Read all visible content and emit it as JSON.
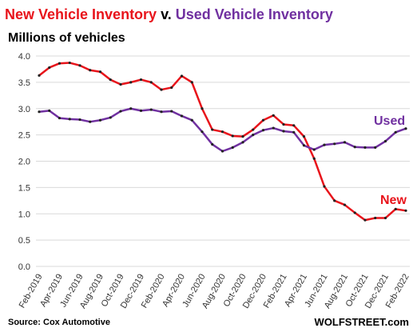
{
  "chart_data": {
    "type": "line",
    "title": [
      "New Vehicle Inventory",
      "v.",
      "Used Vehicle Inventory"
    ],
    "title_colors": [
      "#e8141b",
      "#000000",
      "#7030a0"
    ],
    "subtitle": "Millions of vehicles",
    "source": "Source: Cox Automotive",
    "credit": "WOLFSTREET.com",
    "categories": [
      "Feb-2019",
      null,
      "Apr-2019",
      null,
      "Jun-2019",
      null,
      "Aug-2019",
      null,
      "Oct-2019",
      null,
      "Dec-2019",
      null,
      "Feb-2020",
      null,
      "Apr-2020",
      null,
      "Jun-2020",
      null,
      "Aug-2020",
      null,
      "Oct-2020",
      null,
      "Dec-2020",
      null,
      "Feb-2021",
      null,
      "Apr-2021",
      null,
      "Jun-2021",
      null,
      "Aug-2021",
      null,
      "Oct-2021",
      null,
      "Dec-2021",
      null,
      "Feb-2022"
    ],
    "series": [
      {
        "name": "New",
        "color": "#e8141b",
        "values": [
          3.63,
          3.78,
          3.86,
          3.87,
          3.82,
          3.73,
          3.7,
          3.55,
          3.46,
          3.5,
          3.55,
          3.5,
          3.36,
          3.4,
          3.62,
          3.5,
          3.0,
          2.6,
          2.56,
          2.48,
          2.47,
          2.6,
          2.78,
          2.87,
          2.7,
          2.68,
          2.47,
          2.05,
          1.52,
          1.25,
          1.17,
          1.02,
          0.88,
          0.92,
          0.92,
          1.09,
          1.06
        ]
      },
      {
        "name": "Used",
        "color": "#7030a0",
        "values": [
          2.94,
          2.96,
          2.82,
          2.8,
          2.79,
          2.75,
          2.78,
          2.83,
          2.95,
          3.0,
          2.96,
          2.98,
          2.94,
          2.95,
          2.86,
          2.78,
          2.56,
          2.32,
          2.19,
          2.26,
          2.36,
          2.5,
          2.59,
          2.63,
          2.57,
          2.55,
          2.3,
          2.22,
          2.31,
          2.33,
          2.36,
          2.27,
          2.26,
          2.26,
          2.38,
          2.55,
          2.62
        ]
      }
    ],
    "ylim": [
      0,
      4
    ],
    "yticks": [
      {
        "value": 0,
        "label": "0.0"
      },
      0.5,
      {
        "value": 1,
        "label": "1.0"
      },
      1.5,
      {
        "value": 2,
        "label": "2.0"
      },
      2.5,
      {
        "value": 3,
        "label": "3.0"
      },
      3.5,
      {
        "value": 4,
        "label": "4.0"
      }
    ],
    "grid": true
  }
}
